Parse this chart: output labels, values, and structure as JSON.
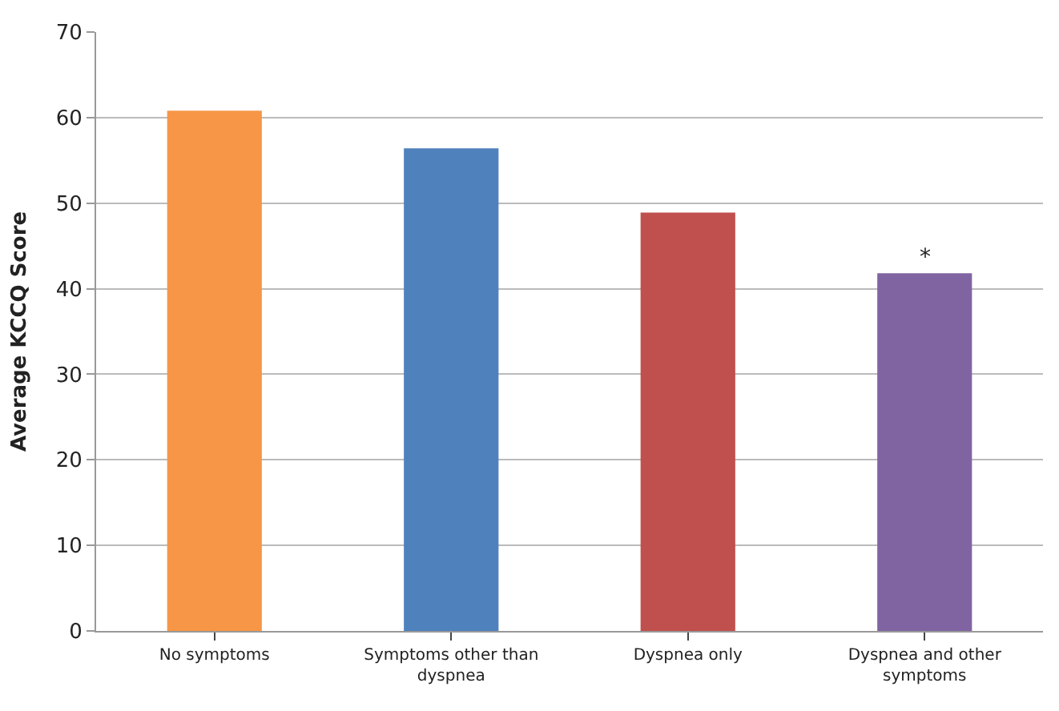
{
  "chart_data": {
    "type": "bar",
    "ylabel": "Average KCCQ Score",
    "categories": [
      "No symptoms",
      "Symptoms other than dyspnea",
      "Dyspnea only",
      "Dyspnea and other symptoms"
    ],
    "values": [
      60.8,
      56.4,
      48.9,
      41.8
    ],
    "colors": [
      "#f79646",
      "#4f81bd",
      "#c0504d",
      "#8064a2"
    ],
    "ylim": [
      0,
      70
    ],
    "yticks": [
      0,
      10,
      20,
      30,
      40,
      50,
      60,
      70
    ],
    "grid": "y",
    "annotations": [
      {
        "text": "*",
        "x": "Dyspnea and other symptoms",
        "y": 41.8
      }
    ]
  }
}
